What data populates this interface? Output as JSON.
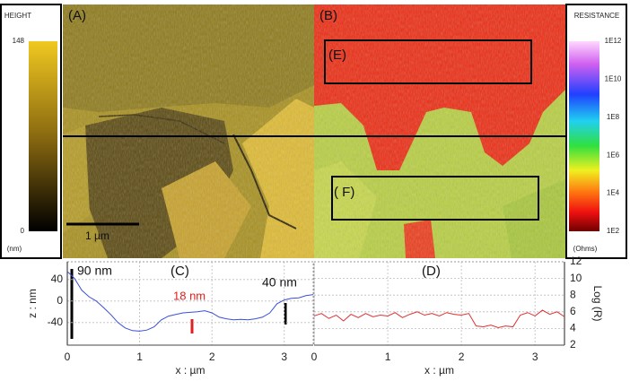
{
  "images": {
    "height_scale": {
      "title": "HEIGHT",
      "ticks": [
        148,
        0
      ],
      "unit": "(nm)"
    },
    "height_label": "(A)",
    "scale_bar": "1 µm",
    "resistance_label": "(B)",
    "region_e": "(E)",
    "region_f": "( F)",
    "resistance_scale": {
      "title": "RESISTANCE",
      "ticks": [
        {
          "value": 1000000000000.0,
          "label": "1E12"
        },
        {
          "value": 10000000000.0,
          "label": "1E10"
        },
        {
          "value": 100000000.0,
          "label": "1E8"
        },
        {
          "value": 1000000.0,
          "label": "1E6"
        },
        {
          "value": 10000.0,
          "label": "1E4"
        },
        {
          "value": 100.0,
          "label": "1E2"
        }
      ],
      "unit": "(Ohms)"
    }
  },
  "chart_data": [
    {
      "type": "line",
      "title": "(C)",
      "x_label": "x : µm",
      "y_label": "z : nm",
      "annotations": [
        "90 nm",
        "18 nm",
        "40 nm"
      ],
      "x": [
        0,
        0.1,
        0.2,
        0.3,
        0.4,
        0.5,
        0.6,
        0.7,
        0.8,
        0.9,
        1.0,
        1.1,
        1.2,
        1.3,
        1.4,
        1.5,
        1.6,
        1.7,
        1.8,
        1.9,
        2.0,
        2.1,
        2.2,
        2.3,
        2.4,
        2.5,
        2.6,
        2.7,
        2.8,
        2.9,
        3.0,
        3.1,
        3.2,
        3.3,
        3.4
      ],
      "series": [
        {
          "color": "#3a4fd8",
          "values": [
            55,
            42,
            20,
            8,
            0,
            -12,
            -25,
            -40,
            -50,
            -55,
            -56,
            -54,
            -48,
            -35,
            -28,
            -25,
            -22,
            -21,
            -20,
            -18,
            -22,
            -30,
            -33,
            -35,
            -34,
            -35,
            -33,
            -30,
            -22,
            -5,
            2,
            5,
            6,
            10,
            12
          ]
        }
      ],
      "xlim": [
        0,
        3.4
      ],
      "xticks": [
        0,
        1,
        2,
        3
      ],
      "ylim": [
        -82,
        73
      ],
      "yticks": [
        40,
        0,
        -40
      ],
      "grid": true,
      "y_axis_side": "left"
    },
    {
      "type": "line",
      "title": "(D)",
      "x_label": "x : µm",
      "y_label": "Log (R)",
      "x": [
        0,
        0.1,
        0.2,
        0.3,
        0.4,
        0.5,
        0.6,
        0.7,
        0.8,
        0.9,
        1.0,
        1.1,
        1.2,
        1.3,
        1.4,
        1.5,
        1.6,
        1.7,
        1.8,
        1.9,
        2.0,
        2.1,
        2.2,
        2.3,
        2.4,
        2.5,
        2.6,
        2.7,
        2.8,
        2.9,
        3.0,
        3.1,
        3.2,
        3.3,
        3.4
      ],
      "series": [
        {
          "color": "#e03030",
          "values": [
            5.5,
            5.8,
            5.2,
            5.6,
            4.9,
            5.7,
            5.3,
            5.8,
            5.4,
            5.6,
            5.5,
            5.9,
            5.3,
            5.7,
            6.0,
            5.6,
            5.8,
            5.5,
            5.9,
            5.7,
            5.6,
            5.8,
            4.3,
            4.2,
            4.4,
            4.1,
            4.3,
            4.2,
            5.6,
            5.9,
            5.5,
            6.2,
            5.7,
            6.0,
            5.4
          ]
        }
      ],
      "xlim": [
        0,
        3.4
      ],
      "xticks": [
        0,
        1,
        2,
        3
      ],
      "ylim": [
        2,
        12
      ],
      "yticks": [
        2,
        4,
        6,
        8,
        10,
        12
      ],
      "grid": true,
      "y_axis_side": "right"
    }
  ]
}
